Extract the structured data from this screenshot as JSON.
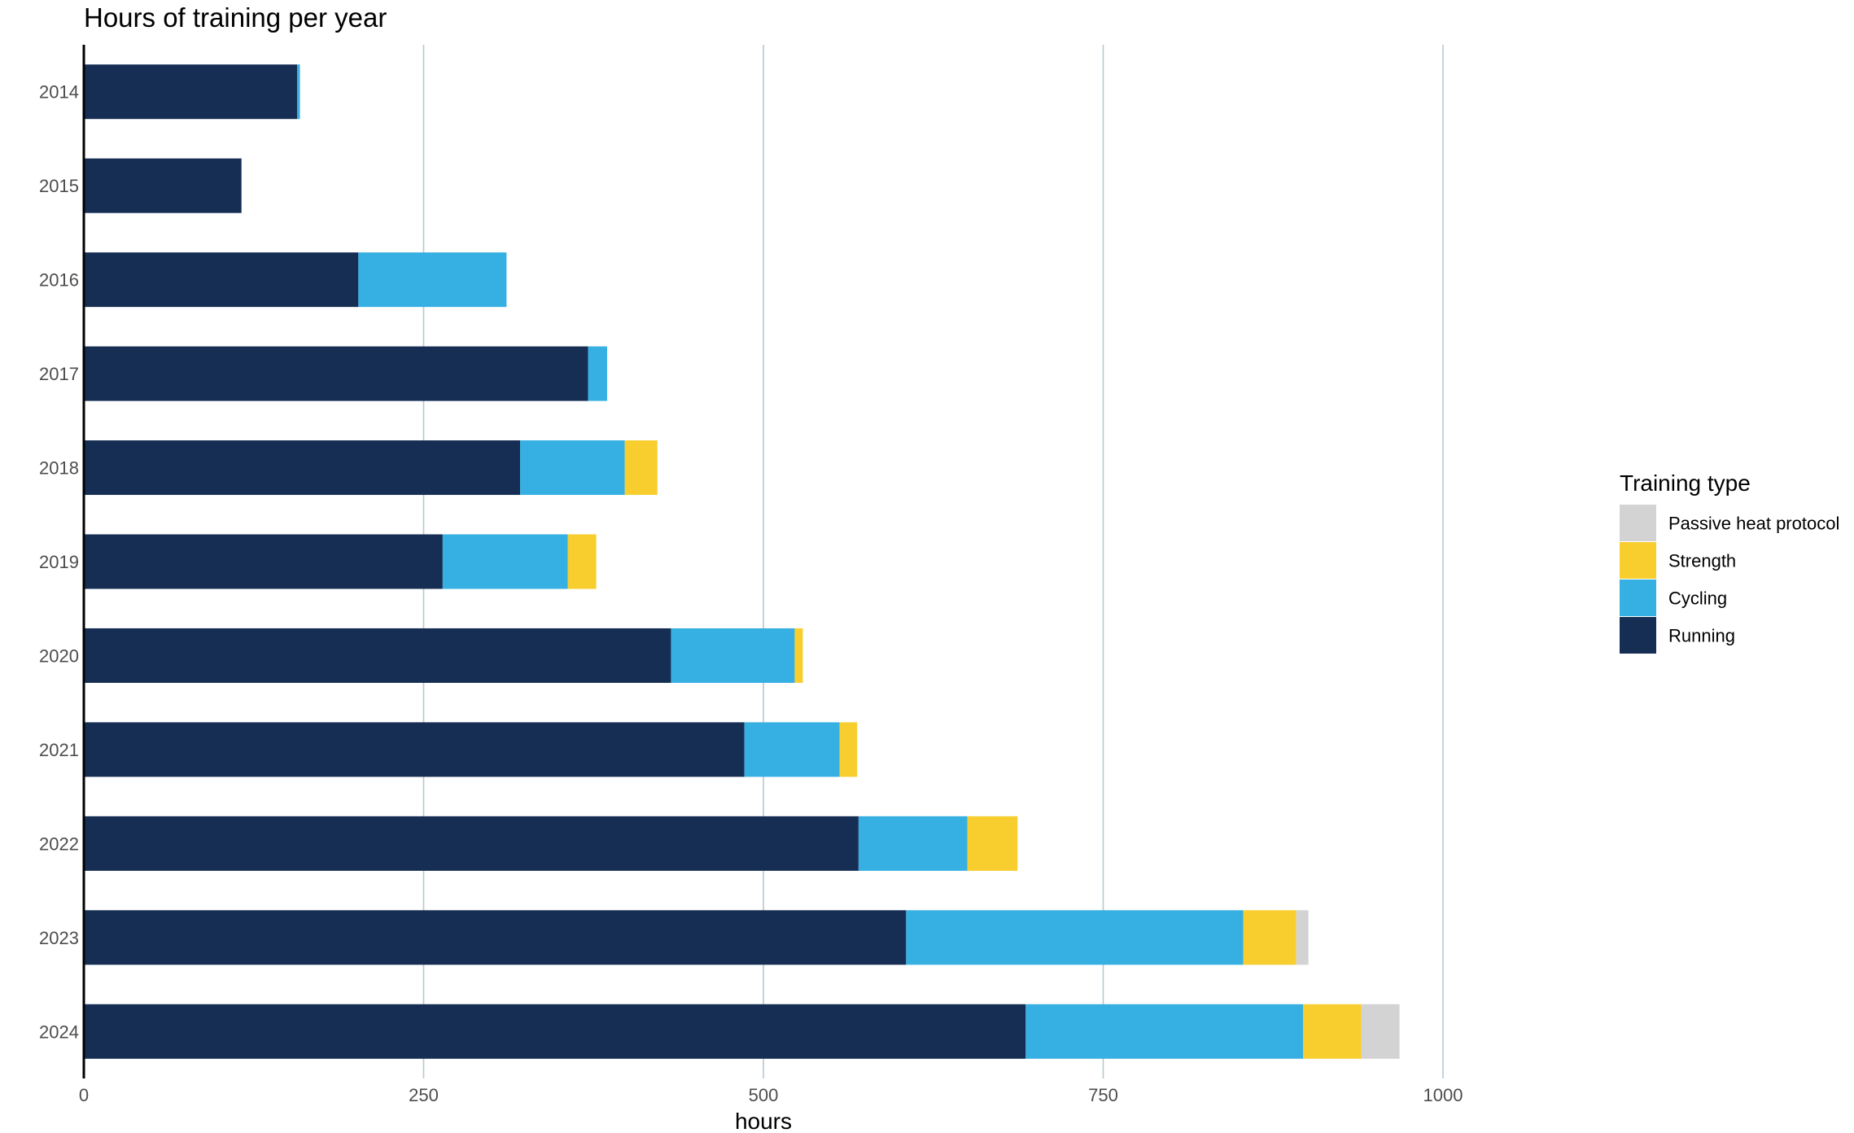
{
  "chart_data": {
    "type": "bar",
    "orientation": "horizontal",
    "stacked": true,
    "title": "Hours of training per year",
    "xlabel": "hours",
    "ylabel": "",
    "xlim": [
      0,
      1000
    ],
    "x_ticks": [
      0,
      250,
      500,
      750,
      1000
    ],
    "x_tick_labels": [
      "0",
      "250",
      "500",
      "750",
      "1000"
    ],
    "grid": "vertical major gridlines",
    "categories": [
      "2014",
      "2015",
      "2016",
      "2017",
      "2018",
      "2019",
      "2020",
      "2021",
      "2022",
      "2023",
      "2024"
    ],
    "series": [
      {
        "name": "Running",
        "color": "#172e54",
        "values": [
          157,
          116,
          202,
          371,
          321,
          264,
          432,
          486,
          570,
          605,
          693
        ]
      },
      {
        "name": "Cycling",
        "color": "#36afe2",
        "values": [
          2,
          0,
          109,
          14,
          77,
          92,
          91,
          70,
          80,
          248,
          204
        ]
      },
      {
        "name": "Strength",
        "color": "#f8ce2f",
        "values": [
          0,
          0,
          0,
          0,
          24,
          21,
          6,
          13,
          37,
          39,
          43
        ]
      },
      {
        "name": "Passive heat protocol",
        "color": "#d3d3d3",
        "values": [
          0,
          0,
          0,
          0,
          0,
          0,
          0,
          0,
          0,
          9,
          28
        ]
      }
    ],
    "legend": {
      "title": "Training type",
      "position": "right",
      "entries": [
        "Passive heat protocol",
        "Strength",
        "Cycling",
        "Running"
      ]
    },
    "colors": {
      "gridline": "#b8c7d1",
      "axis_line": "#000000"
    }
  }
}
